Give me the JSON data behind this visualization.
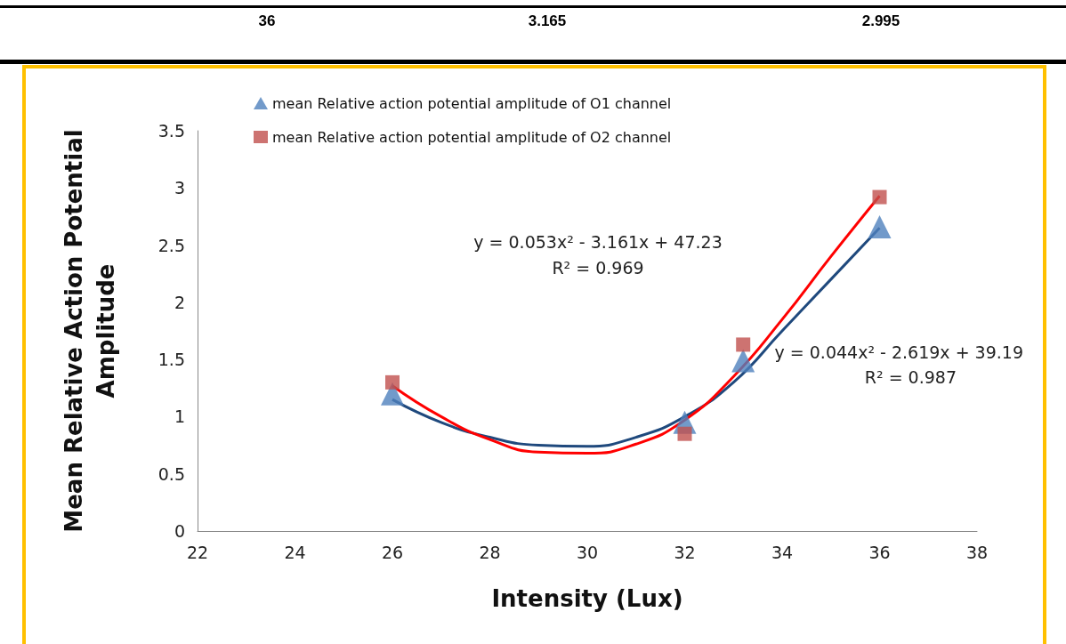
{
  "chart_data": {
    "type": "scatter",
    "xlabel": "Intensity (Lux)",
    "ylabel": "Mean Relative Action Potential Amplitude",
    "xlim": [
      22,
      38
    ],
    "xticks": [
      22,
      24,
      26,
      28,
      30,
      32,
      34,
      36,
      38
    ],
    "ylim": [
      0,
      3.5
    ],
    "yticks": [
      0,
      0.5,
      1,
      1.5,
      2,
      2.5,
      3,
      3.5
    ],
    "grid": false,
    "legend": "top left",
    "series": [
      {
        "type": "line",
        "color": "#1f497d",
        "marker": "none",
        "x": [
          26,
          27,
          28,
          29,
          30,
          31,
          32,
          33,
          34,
          35,
          36
        ],
        "values": [
          1.15,
          0.95,
          0.82,
          0.75,
          0.74,
          0.82,
          1.0,
          1.3,
          1.75,
          2.2,
          2.65
        ]
      },
      {
        "type": "line",
        "color": "#ff0000",
        "marker": "none",
        "x": [
          26,
          27,
          28,
          29,
          30,
          31,
          32,
          33,
          34,
          35,
          36
        ],
        "values": [
          1.27,
          1.0,
          0.8,
          0.69,
          0.68,
          0.76,
          0.97,
          1.35,
          1.85,
          2.4,
          2.93
        ]
      },
      {
        "name": "mean Relative action potential amplitude of O1 channel",
        "color": "#4f81bd",
        "marker": "triangle",
        "x": [
          26,
          32,
          33.2,
          36
        ],
        "values": [
          1.2,
          0.95,
          1.49,
          2.66
        ]
      },
      {
        "name": "mean Relative action potential amplitude of O2 channel",
        "color": "#c0504d",
        "marker": "square",
        "x": [
          26,
          32,
          33.2,
          36
        ],
        "values": [
          1.3,
          0.85,
          1.63,
          2.92
        ]
      }
    ],
    "annotations": [
      "36",
      "3.165",
      "2.995",
      "y = 0.053x² - 3.161x + 47.23",
      "R² = 0.969",
      "y = 0.044x² - 2.619x + 39.19",
      "R² = 0.987"
    ]
  }
}
